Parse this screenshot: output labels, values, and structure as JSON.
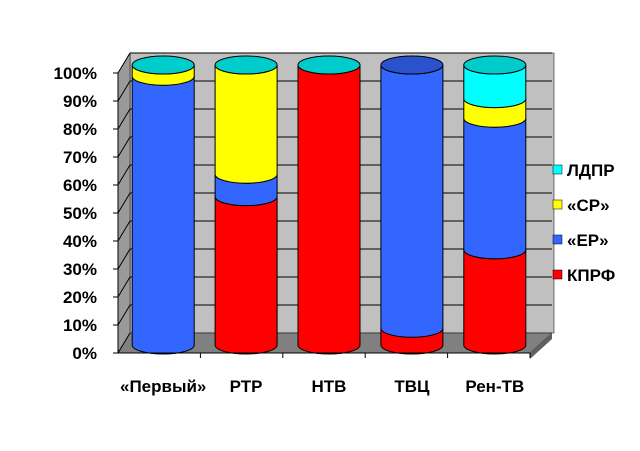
{
  "chart_data": {
    "type": "bar",
    "stacked": "percent",
    "style": "3d-cylinder",
    "categories": [
      "«Первый»",
      "РТР",
      "НТВ",
      "ТВЦ",
      "Рен-ТВ"
    ],
    "series": [
      {
        "name": "КПРФ",
        "color": "#ff0000",
        "values": [
          0,
          53,
          100,
          6,
          34
        ]
      },
      {
        "name": "«ЕР»",
        "color": "#3366ff",
        "values": [
          96,
          8,
          0,
          94,
          47
        ]
      },
      {
        "name": "«СР»",
        "color": "#ffff00",
        "values": [
          4,
          39,
          0,
          0,
          7
        ]
      },
      {
        "name": "ЛДПР",
        "color": "#00ffff",
        "values": [
          0,
          0,
          0,
          0,
          12
        ]
      }
    ],
    "yticks": [
      "0%",
      "10%",
      "20%",
      "30%",
      "40%",
      "50%",
      "60%",
      "70%",
      "80%",
      "90%",
      "100%"
    ],
    "ylim": [
      0,
      100
    ],
    "grid": true,
    "legend": "right",
    "wall_color": "#c0c0c0"
  }
}
